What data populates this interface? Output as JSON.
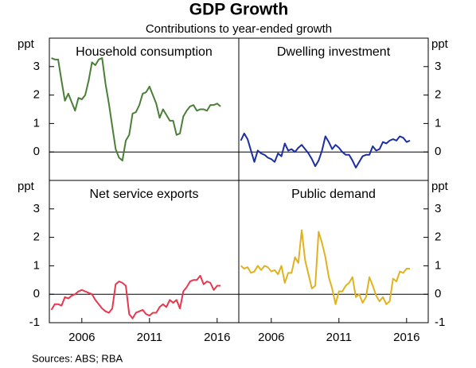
{
  "title": "GDP Growth",
  "subtitle": "Contributions to year-ended growth",
  "source": "Sources:   ABS; RBA",
  "chart_data": [
    {
      "type": "line",
      "title": "Household consumption",
      "ylabel": "ppt",
      "ylim": [
        -1,
        4
      ],
      "yticks": [
        0,
        1,
        2,
        3
      ],
      "xlim": [
        2003.6,
        2017.6
      ],
      "x": [
        2003.75,
        2004,
        2004.25,
        2004.5,
        2004.75,
        2005,
        2005.25,
        2005.5,
        2005.75,
        2006,
        2006.25,
        2006.5,
        2006.75,
        2007,
        2007.25,
        2007.5,
        2007.75,
        2008,
        2008.25,
        2008.5,
        2008.75,
        2009,
        2009.25,
        2009.5,
        2009.75,
        2010,
        2010.25,
        2010.5,
        2010.75,
        2011,
        2011.25,
        2011.5,
        2011.75,
        2012,
        2012.25,
        2012.5,
        2012.75,
        2013,
        2013.25,
        2013.5,
        2013.75,
        2014,
        2014.25,
        2014.5,
        2014.75,
        2015,
        2015.25,
        2015.5,
        2015.75,
        2016,
        2016.25
      ],
      "series": [
        {
          "name": "Household consumption",
          "color": "#4a7f38",
          "values": [
            3.3,
            3.25,
            3.25,
            2.5,
            1.8,
            2.05,
            1.75,
            1.45,
            1.9,
            1.85,
            2.0,
            2.5,
            3.15,
            3.05,
            3.25,
            3.3,
            2.4,
            1.7,
            0.9,
            0.1,
            -0.2,
            -0.3,
            0.4,
            0.6,
            1.35,
            1.4,
            1.65,
            2.05,
            2.1,
            2.3,
            2.0,
            1.7,
            1.2,
            1.5,
            1.3,
            1.1,
            1.1,
            0.6,
            0.65,
            1.25,
            1.45,
            1.6,
            1.65,
            1.45,
            1.5,
            1.5,
            1.45,
            1.65,
            1.65,
            1.7,
            1.6
          ]
        }
      ]
    },
    {
      "type": "line",
      "title": "Dwelling investment",
      "ylabel": "ppt",
      "ylim": [
        -1,
        4
      ],
      "yticks": [
        0,
        1,
        2,
        3
      ],
      "xlim": [
        2003.6,
        2017.6
      ],
      "x": [
        2003.75,
        2004,
        2004.25,
        2004.5,
        2004.75,
        2005,
        2005.25,
        2005.5,
        2005.75,
        2006,
        2006.25,
        2006.5,
        2006.75,
        2007,
        2007.25,
        2007.5,
        2007.75,
        2008,
        2008.25,
        2008.5,
        2008.75,
        2009,
        2009.25,
        2009.5,
        2009.75,
        2010,
        2010.25,
        2010.5,
        2010.75,
        2011,
        2011.25,
        2011.5,
        2011.75,
        2012,
        2012.25,
        2012.5,
        2012.75,
        2013,
        2013.25,
        2013.5,
        2013.75,
        2014,
        2014.25,
        2014.5,
        2014.75,
        2015,
        2015.25,
        2015.5,
        2015.75,
        2016,
        2016.25
      ],
      "series": [
        {
          "name": "Dwelling investment",
          "color": "#1c2ea3",
          "values": [
            0.4,
            0.65,
            0.45,
            0.05,
            -0.35,
            0.05,
            -0.05,
            -0.1,
            -0.2,
            -0.25,
            -0.35,
            -0.05,
            -0.15,
            0.3,
            0.05,
            0.1,
            0.0,
            0.15,
            0.25,
            0.1,
            -0.05,
            -0.25,
            -0.5,
            -0.3,
            0.05,
            0.55,
            0.35,
            0.1,
            0.25,
            0.15,
            0.0,
            -0.1,
            -0.1,
            -0.3,
            -0.55,
            -0.35,
            -0.15,
            -0.1,
            -0.1,
            0.2,
            0.05,
            0.1,
            0.35,
            0.3,
            0.4,
            0.45,
            0.4,
            0.55,
            0.5,
            0.35,
            0.4
          ]
        }
      ]
    },
    {
      "type": "line",
      "title": "Net service exports",
      "ylabel": "ppt",
      "ylim": [
        -1,
        4
      ],
      "yticks": [
        -1,
        0,
        1,
        2,
        3
      ],
      "xlim": [
        2003.6,
        2017.6
      ],
      "xticks": [
        2006,
        2011,
        2016
      ],
      "x": [
        2003.75,
        2004,
        2004.25,
        2004.5,
        2004.75,
        2005,
        2005.25,
        2005.5,
        2005.75,
        2006,
        2006.25,
        2006.5,
        2006.75,
        2007,
        2007.25,
        2007.5,
        2007.75,
        2008,
        2008.25,
        2008.5,
        2008.75,
        2009,
        2009.25,
        2009.5,
        2009.75,
        2010,
        2010.25,
        2010.5,
        2010.75,
        2011,
        2011.25,
        2011.5,
        2011.75,
        2012,
        2012.25,
        2012.5,
        2012.75,
        2013,
        2013.25,
        2013.5,
        2013.75,
        2014,
        2014.25,
        2014.5,
        2014.75,
        2015,
        2015.25,
        2015.5,
        2015.75,
        2016,
        2016.25
      ],
      "series": [
        {
          "name": "Net service exports",
          "color": "#e8374f",
          "values": [
            -0.55,
            -0.35,
            -0.35,
            -0.4,
            -0.1,
            -0.15,
            -0.05,
            0.0,
            0.1,
            0.15,
            0.1,
            0.05,
            0.0,
            -0.2,
            -0.35,
            -0.5,
            -0.6,
            -0.65,
            -0.5,
            0.35,
            0.45,
            0.4,
            0.3,
            -0.7,
            -0.85,
            -0.65,
            -0.6,
            -0.55,
            -0.7,
            -0.75,
            -0.65,
            -0.65,
            -0.45,
            -0.35,
            -0.45,
            -0.2,
            -0.3,
            -0.2,
            -0.5,
            0.1,
            0.25,
            0.45,
            0.5,
            0.5,
            0.65,
            0.35,
            0.45,
            0.4,
            0.15,
            0.3,
            0.3
          ]
        }
      ]
    },
    {
      "type": "line",
      "title": "Public demand",
      "ylabel": "ppt",
      "ylim": [
        -1,
        4
      ],
      "yticks": [
        -1,
        0,
        1,
        2,
        3
      ],
      "xlim": [
        2003.6,
        2017.6
      ],
      "xticks": [
        2006,
        2011,
        2016
      ],
      "x": [
        2003.75,
        2004,
        2004.25,
        2004.5,
        2004.75,
        2005,
        2005.25,
        2005.5,
        2005.75,
        2006,
        2006.25,
        2006.5,
        2006.75,
        2007,
        2007.25,
        2007.5,
        2007.75,
        2008,
        2008.25,
        2008.5,
        2008.75,
        2009,
        2009.25,
        2009.5,
        2009.75,
        2010,
        2010.25,
        2010.5,
        2010.75,
        2011,
        2011.25,
        2011.5,
        2011.75,
        2012,
        2012.25,
        2012.5,
        2012.75,
        2013,
        2013.25,
        2013.5,
        2013.75,
        2014,
        2014.25,
        2014.5,
        2014.75,
        2015,
        2015.25,
        2015.5,
        2015.75,
        2016,
        2016.25
      ],
      "series": [
        {
          "name": "Public demand",
          "color": "#e1b21f",
          "values": [
            1.0,
            0.9,
            0.95,
            0.75,
            0.8,
            1.0,
            0.85,
            1.0,
            0.95,
            0.8,
            0.85,
            0.7,
            1.0,
            0.4,
            0.75,
            0.75,
            1.3,
            1.1,
            2.25,
            1.2,
            0.7,
            0.2,
            0.3,
            2.2,
            1.8,
            1.3,
            0.6,
            0.2,
            -0.35,
            0.1,
            0.1,
            0.3,
            0.4,
            0.6,
            -0.1,
            0.0,
            -0.3,
            -0.1,
            0.6,
            0.3,
            -0.05,
            -0.25,
            -0.1,
            -0.35,
            -0.25,
            0.55,
            0.45,
            0.8,
            0.75,
            0.9,
            0.9
          ]
        }
      ]
    }
  ]
}
